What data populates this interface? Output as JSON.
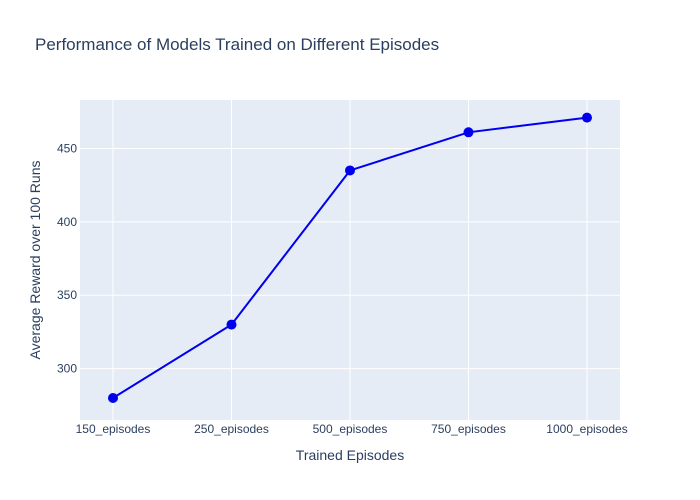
{
  "chart_data": {
    "type": "line",
    "title": "Performance of Models Trained on Different Episodes",
    "xlabel": "Trained Episodes",
    "ylabel": "Average Reward over 100 Runs",
    "categories": [
      "150_episodes",
      "250_episodes",
      "500_episodes",
      "750_episodes",
      "1000_episodes"
    ],
    "series": [
      {
        "values": [
          280,
          330,
          435,
          461,
          471
        ]
      }
    ],
    "ylim": [
      265,
      483
    ],
    "yticks": [
      300,
      350,
      400,
      450
    ],
    "grid": true,
    "legend": false,
    "markers": true
  },
  "colors": {
    "line": "#0000ee",
    "plot_background": "#e5ecf6",
    "grid": "#ffffff",
    "text": "#2a3f5f"
  }
}
